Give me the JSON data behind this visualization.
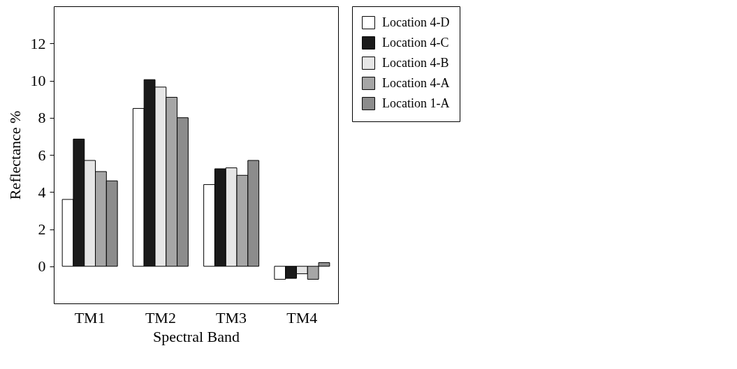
{
  "chart_data": {
    "type": "bar",
    "xlabel": "Spectral Band",
    "ylabel": "Reflectance %",
    "categories": [
      "TM1",
      "TM2",
      "TM3",
      "TM4"
    ],
    "series": [
      {
        "name": "Location 4-D",
        "color": "#ffffff",
        "values": [
          3.6,
          8.5,
          4.4,
          -0.7
        ]
      },
      {
        "name": "Location 4-C",
        "color": "#1a1a1a",
        "values": [
          6.85,
          10.05,
          5.25,
          -0.65
        ]
      },
      {
        "name": "Location 4-B",
        "color": "#e6e6e6",
        "values": [
          5.7,
          9.65,
          5.3,
          -0.4
        ]
      },
      {
        "name": "Location 4-A",
        "color": "#a6a6a6",
        "values": [
          5.1,
          9.1,
          4.9,
          -0.7
        ]
      },
      {
        "name": "Location 1-A",
        "color": "#8c8c8c",
        "values": [
          4.6,
          8.0,
          5.7,
          0.2
        ]
      }
    ],
    "ylim": [
      -2,
      14
    ],
    "yticks": [
      0,
      2,
      4,
      6,
      8,
      10,
      12
    ],
    "grid": false,
    "legend": "right"
  }
}
